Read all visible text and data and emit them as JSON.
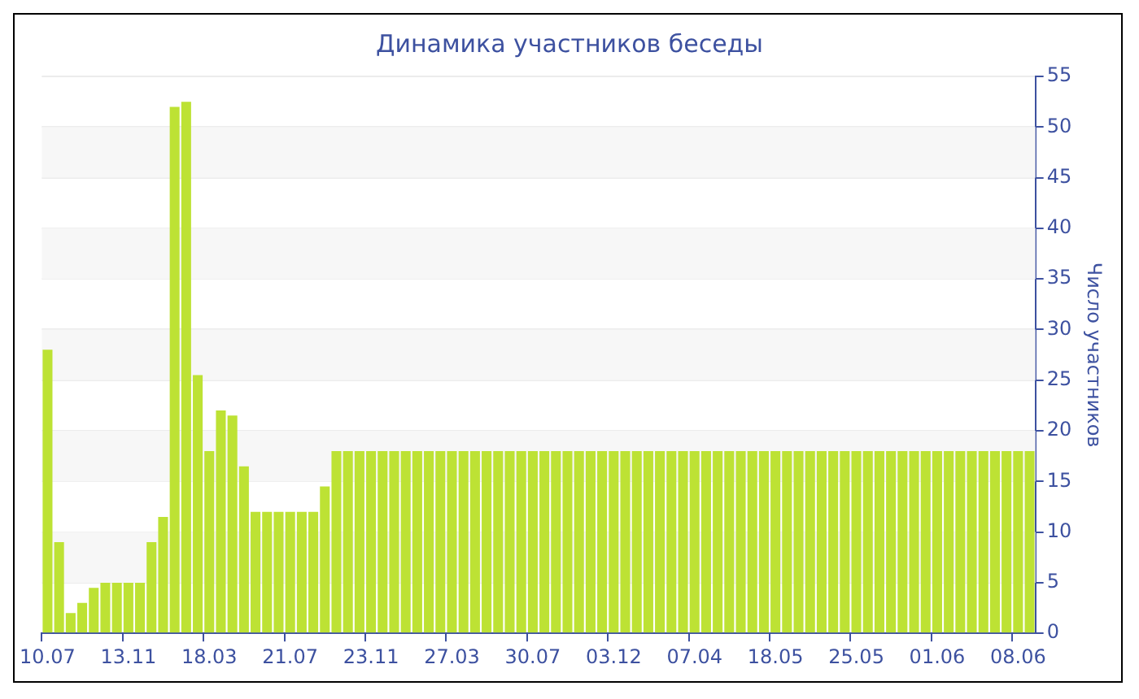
{
  "chart_data": {
    "type": "bar",
    "title": "Динамика участников беседы",
    "ylabel": "Число участников",
    "categories": [
      "10.07",
      null,
      null,
      null,
      null,
      null,
      null,
      "13.11",
      null,
      null,
      null,
      null,
      null,
      null,
      "18.03",
      null,
      null,
      null,
      null,
      null,
      null,
      "21.07",
      null,
      null,
      null,
      null,
      null,
      null,
      "23.11",
      null,
      null,
      null,
      null,
      null,
      null,
      "27.03",
      null,
      null,
      null,
      null,
      null,
      null,
      "30.07",
      null,
      null,
      null,
      null,
      null,
      null,
      "03.12",
      null,
      null,
      null,
      null,
      null,
      null,
      "07.04",
      null,
      null,
      null,
      null,
      null,
      null,
      "18.05",
      null,
      null,
      null,
      null,
      null,
      null,
      "25.05",
      null,
      null,
      null,
      null,
      null,
      null,
      "01.06",
      null,
      null,
      null,
      null,
      null,
      null,
      "08.06",
      null
    ],
    "values": [
      28,
      9,
      2,
      3,
      4.5,
      5,
      5,
      5,
      5,
      9,
      11.5,
      52,
      52.5,
      25.5,
      18,
      22,
      21.5,
      16.5,
      12,
      12,
      12,
      12,
      12,
      12,
      14.5,
      18,
      18,
      18,
      18,
      18,
      18,
      18,
      18,
      18,
      18,
      18,
      18,
      18,
      18,
      18,
      18,
      18,
      18,
      18,
      18,
      18,
      18,
      18,
      18,
      18,
      18,
      18,
      18,
      18,
      18,
      18,
      18,
      18,
      18,
      18,
      18,
      18,
      18,
      18,
      18,
      18,
      18,
      18,
      18,
      18,
      18,
      18,
      18,
      18,
      18,
      18,
      18,
      18,
      18,
      18,
      18,
      18,
      18,
      18,
      18,
      18
    ],
    "color": "#bde234",
    "ylim": [
      0,
      55
    ],
    "yticks": [
      0,
      5,
      10,
      15,
      20,
      25,
      30,
      35,
      40,
      45,
      50,
      55
    ],
    "grid": true
  }
}
